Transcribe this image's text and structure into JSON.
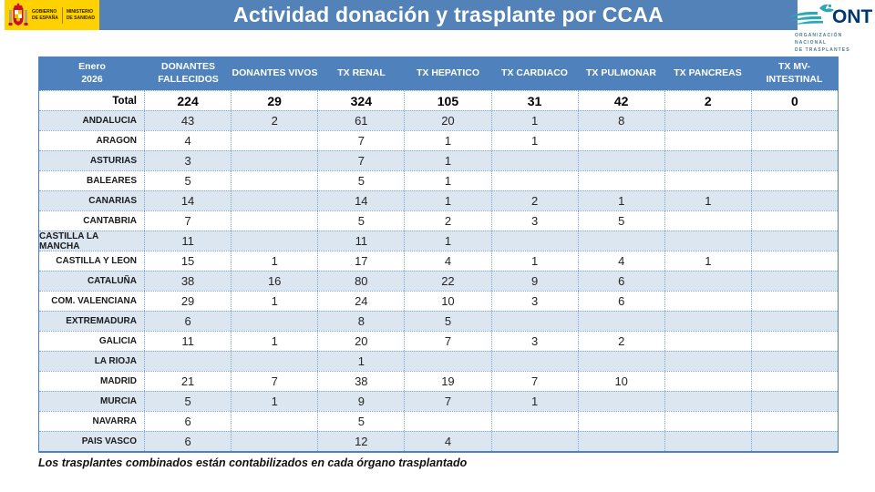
{
  "gov_logo": {
    "gobierno": "GOBIERNO\nDE ESPAÑA",
    "ministerio": "MINISTERIO\nDE SANIDAD"
  },
  "title": "Actividad donación y trasplante por CCAA",
  "ont_logo": {
    "acronym": "ONT",
    "caption": "ORGANIZACIÓN NACIONAL\nDE TRASPLANTES"
  },
  "chart_data": {
    "type": "table",
    "title": "Actividad donación y trasplante por CCAA",
    "header": [
      "Enero\n2026",
      "DONANTES\nFALLECIDOS",
      "DONANTES VIVOS",
      "TX RENAL",
      "TX HEPATICO",
      "TX CARDIACO",
      "TX PULMONAR",
      "TX PANCREAS",
      "TX MV-\nINTESTINAL"
    ],
    "total": {
      "label": "Total",
      "values": [
        "224",
        "29",
        "324",
        "105",
        "31",
        "42",
        "2",
        "0"
      ]
    },
    "rows": [
      {
        "label": "ANDALUCIA",
        "values": [
          "43",
          "2",
          "61",
          "20",
          "1",
          "8",
          "",
          ""
        ]
      },
      {
        "label": "ARAGON",
        "values": [
          "4",
          "",
          "7",
          "1",
          "1",
          "",
          "",
          ""
        ]
      },
      {
        "label": "ASTURIAS",
        "values": [
          "3",
          "",
          "7",
          "1",
          "",
          "",
          "",
          ""
        ]
      },
      {
        "label": "BALEARES",
        "values": [
          "5",
          "",
          "5",
          "1",
          "",
          "",
          "",
          ""
        ]
      },
      {
        "label": "CANARIAS",
        "values": [
          "14",
          "",
          "14",
          "1",
          "2",
          "1",
          "1",
          ""
        ]
      },
      {
        "label": "CANTABRIA",
        "values": [
          "7",
          "",
          "5",
          "2",
          "3",
          "5",
          "",
          ""
        ]
      },
      {
        "label": "CASTILLA LA MANCHA",
        "values": [
          "11",
          "",
          "11",
          "1",
          "",
          "",
          "",
          ""
        ]
      },
      {
        "label": "CASTILLA Y LEON",
        "values": [
          "15",
          "1",
          "17",
          "4",
          "1",
          "4",
          "1",
          ""
        ]
      },
      {
        "label": "CATALUÑA",
        "values": [
          "38",
          "16",
          "80",
          "22",
          "9",
          "6",
          "",
          ""
        ]
      },
      {
        "label": "COM. VALENCIANA",
        "values": [
          "29",
          "1",
          "24",
          "10",
          "3",
          "6",
          "",
          ""
        ]
      },
      {
        "label": "EXTREMADURA",
        "values": [
          "6",
          "",
          "8",
          "5",
          "",
          "",
          "",
          ""
        ]
      },
      {
        "label": "GALICIA",
        "values": [
          "11",
          "1",
          "20",
          "7",
          "3",
          "2",
          "",
          ""
        ]
      },
      {
        "label": "LA RIOJA",
        "values": [
          "",
          "",
          "1",
          "",
          "",
          "",
          "",
          ""
        ]
      },
      {
        "label": "MADRID",
        "values": [
          "21",
          "7",
          "38",
          "19",
          "7",
          "10",
          "",
          ""
        ]
      },
      {
        "label": "MURCIA",
        "values": [
          "5",
          "1",
          "9",
          "7",
          "1",
          "",
          "",
          ""
        ]
      },
      {
        "label": "NAVARRA",
        "values": [
          "6",
          "",
          "5",
          "",
          "",
          "",
          "",
          ""
        ]
      },
      {
        "label": "PAIS VASCO",
        "values": [
          "6",
          "",
          "12",
          "4",
          "",
          "",
          "",
          ""
        ]
      }
    ]
  },
  "footnote": "Los trasplantes combinados están contabilizados en cada órgano trasplantado",
  "colors": {
    "banner_blue": "#5282B8",
    "header_blue": "#4F81BD",
    "band_blue": "#DCE6F1",
    "dotted_border": "#7EA6D8",
    "gov_yellow": "#FFD100",
    "crest_red": "#C8102E",
    "ont_teal": "#2BA8B8",
    "ont_navy": "#00386E"
  }
}
